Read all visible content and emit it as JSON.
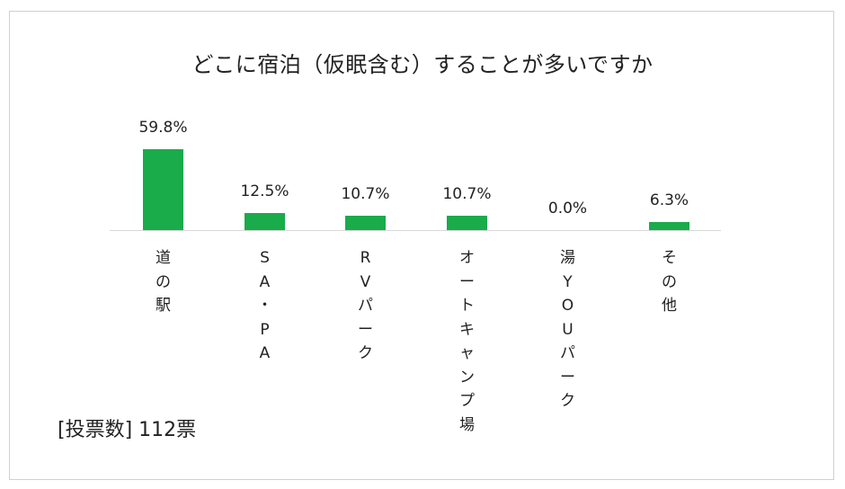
{
  "chart_data": {
    "type": "bar",
    "title": "どこに宿泊（仮眠含む）することが多いですか",
    "categories": [
      "道の駅",
      "SA・PA",
      "RVパーク",
      "オートキャンプ場",
      "湯YOUパーク",
      "その他"
    ],
    "category_lines": [
      [
        "道",
        "の",
        "駅"
      ],
      [
        "S",
        "A",
        "・",
        "P",
        "A"
      ],
      [
        "R",
        "V",
        "パ",
        "ー",
        "ク"
      ],
      [
        "オ",
        "ー",
        "ト",
        "キ",
        "ャ",
        "ン",
        "プ",
        "場"
      ],
      [
        "湯",
        "Y",
        "O",
        "U",
        "パ",
        "ー",
        "ク"
      ],
      [
        "そ",
        "の",
        "他"
      ]
    ],
    "values": [
      59.8,
      12.5,
      10.7,
      10.7,
      0.0,
      6.3
    ],
    "value_labels": [
      "59.8%",
      "12.5%",
      "10.7%",
      "10.7%",
      "0.0%",
      "6.3%"
    ],
    "ylim": [
      0,
      60
    ],
    "grid": false,
    "legend": "none",
    "bar_color": "#1aab4b"
  },
  "footer": {
    "votes_label": "[投票数] 112票"
  }
}
